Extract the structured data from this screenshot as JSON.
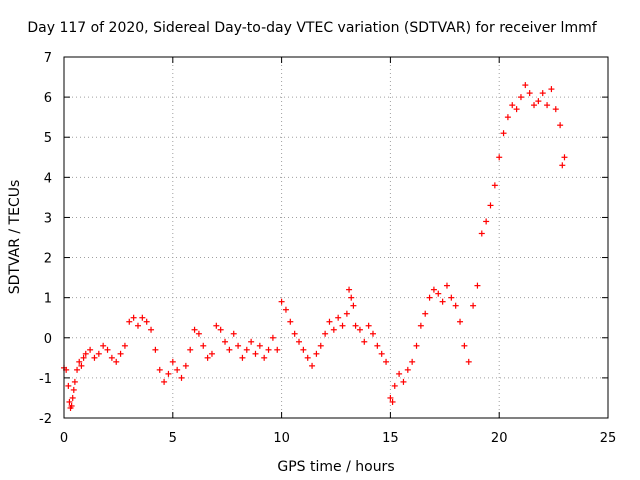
{
  "chart_data": {
    "type": "scatter",
    "title": "Day 117 of 2020, Sidereal Day-to-day VTEC variation (SDTVAR) for receiver lmmf",
    "xlabel": "GPS time / hours",
    "ylabel": "SDTVAR / TECUs",
    "xlim": [
      0,
      25
    ],
    "ylim": [
      -2,
      7
    ],
    "xticks": [
      "0",
      "5",
      "10",
      "15",
      "20",
      "25"
    ],
    "yticks": [
      "-2",
      "-1",
      "0",
      "1",
      "2",
      "3",
      "4",
      "5",
      "6",
      "7"
    ],
    "grid": true,
    "marker": "plus",
    "color": "#ff0000",
    "series": [
      {
        "name": "SDTVAR",
        "x": [
          0.0,
          0.1,
          0.2,
          0.25,
          0.3,
          0.35,
          0.4,
          0.45,
          0.5,
          0.6,
          0.7,
          0.8,
          0.9,
          1.0,
          1.2,
          1.4,
          1.6,
          1.8,
          2.0,
          2.2,
          2.4,
          2.6,
          2.8,
          3.0,
          3.2,
          3.4,
          3.6,
          3.8,
          4.0,
          4.2,
          4.4,
          4.6,
          4.8,
          5.0,
          5.2,
          5.4,
          5.6,
          5.8,
          6.0,
          6.2,
          6.4,
          6.6,
          6.8,
          7.0,
          7.2,
          7.4,
          7.6,
          7.8,
          8.0,
          8.2,
          8.4,
          8.6,
          8.8,
          9.0,
          9.2,
          9.4,
          9.6,
          9.8,
          10.0,
          10.2,
          10.4,
          10.6,
          10.8,
          11.0,
          11.2,
          11.4,
          11.6,
          11.8,
          12.0,
          12.2,
          12.4,
          12.6,
          12.8,
          13.0,
          13.1,
          13.2,
          13.3,
          13.4,
          13.6,
          13.8,
          14.0,
          14.2,
          14.4,
          14.6,
          14.8,
          15.0,
          15.1,
          15.2,
          15.4,
          15.6,
          15.8,
          16.0,
          16.2,
          16.4,
          16.6,
          16.8,
          17.0,
          17.2,
          17.4,
          17.6,
          17.8,
          18.0,
          18.2,
          18.4,
          18.6,
          18.8,
          19.0,
          19.2,
          19.4,
          19.6,
          19.8,
          20.0,
          20.2,
          20.4,
          20.6,
          20.8,
          21.0,
          21.2,
          21.4,
          21.6,
          21.8,
          22.0,
          22.2,
          22.4,
          22.6,
          22.8,
          22.9,
          23.0
        ],
        "y": [
          -0.75,
          -0.8,
          -1.2,
          -1.6,
          -1.75,
          -1.7,
          -1.5,
          -1.3,
          -1.1,
          -0.8,
          -0.6,
          -0.7,
          -0.5,
          -0.4,
          -0.3,
          -0.5,
          -0.4,
          -0.2,
          -0.3,
          -0.5,
          -0.6,
          -0.4,
          -0.2,
          0.4,
          0.5,
          0.3,
          0.5,
          0.4,
          0.2,
          -0.3,
          -0.8,
          -1.1,
          -0.9,
          -0.6,
          -0.8,
          -1.0,
          -0.7,
          -0.3,
          0.2,
          0.1,
          -0.2,
          -0.5,
          -0.4,
          0.3,
          0.2,
          -0.1,
          -0.3,
          0.1,
          -0.2,
          -0.5,
          -0.3,
          -0.1,
          -0.4,
          -0.2,
          -0.5,
          -0.3,
          0.0,
          -0.3,
          0.9,
          0.7,
          0.4,
          0.1,
          -0.1,
          -0.3,
          -0.5,
          -0.7,
          -0.4,
          -0.2,
          0.1,
          0.4,
          0.2,
          0.5,
          0.3,
          0.6,
          1.2,
          1.0,
          0.8,
          0.3,
          0.2,
          -0.1,
          0.3,
          0.1,
          -0.2,
          -0.4,
          -0.6,
          -1.5,
          -1.6,
          -1.2,
          -0.9,
          -1.1,
          -0.8,
          -0.6,
          -0.2,
          0.3,
          0.6,
          1.0,
          1.2,
          1.1,
          0.9,
          1.3,
          1.0,
          0.8,
          0.4,
          -0.2,
          -0.6,
          0.8,
          1.3,
          2.6,
          2.9,
          3.3,
          3.8,
          4.5,
          5.1,
          5.5,
          5.8,
          5.7,
          6.0,
          6.3,
          6.1,
          5.8,
          5.9,
          6.1,
          5.8,
          6.2,
          5.7,
          5.3,
          4.3,
          4.5
        ]
      }
    ]
  }
}
